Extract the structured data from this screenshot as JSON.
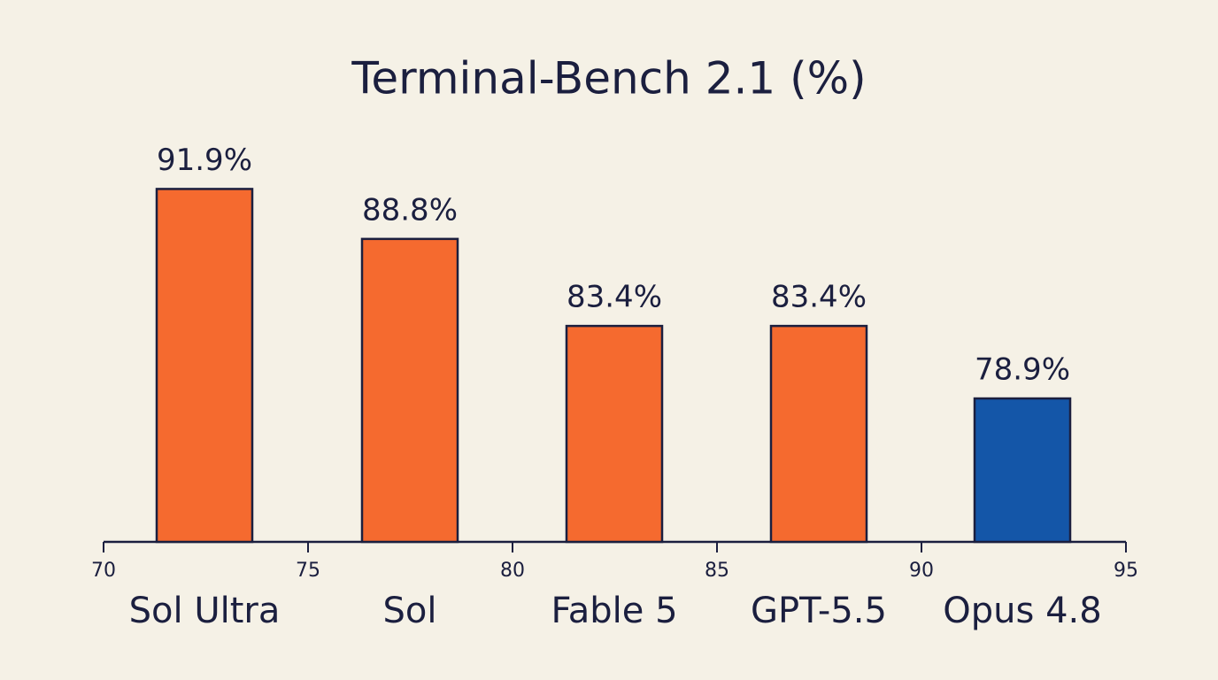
{
  "chart_data": {
    "type": "bar",
    "title": "Terminal-Bench 2.1 (%)",
    "categories": [
      "Sol Ultra",
      "Sol",
      "Fable 5",
      "GPT-5.5",
      "Opus 4.8"
    ],
    "values": [
      91.9,
      88.8,
      83.4,
      83.4,
      78.9
    ],
    "value_labels": [
      "91.9%",
      "88.8%",
      "83.4%",
      "83.4%",
      "78.9%"
    ],
    "colors": [
      "#f56a2f",
      "#f56a2f",
      "#f56a2f",
      "#f56a2f",
      "#1456a8"
    ],
    "ylim": [
      70,
      95
    ],
    "xlim": [
      70,
      95
    ],
    "xticks": [
      70,
      75,
      80,
      85,
      90,
      95
    ]
  }
}
